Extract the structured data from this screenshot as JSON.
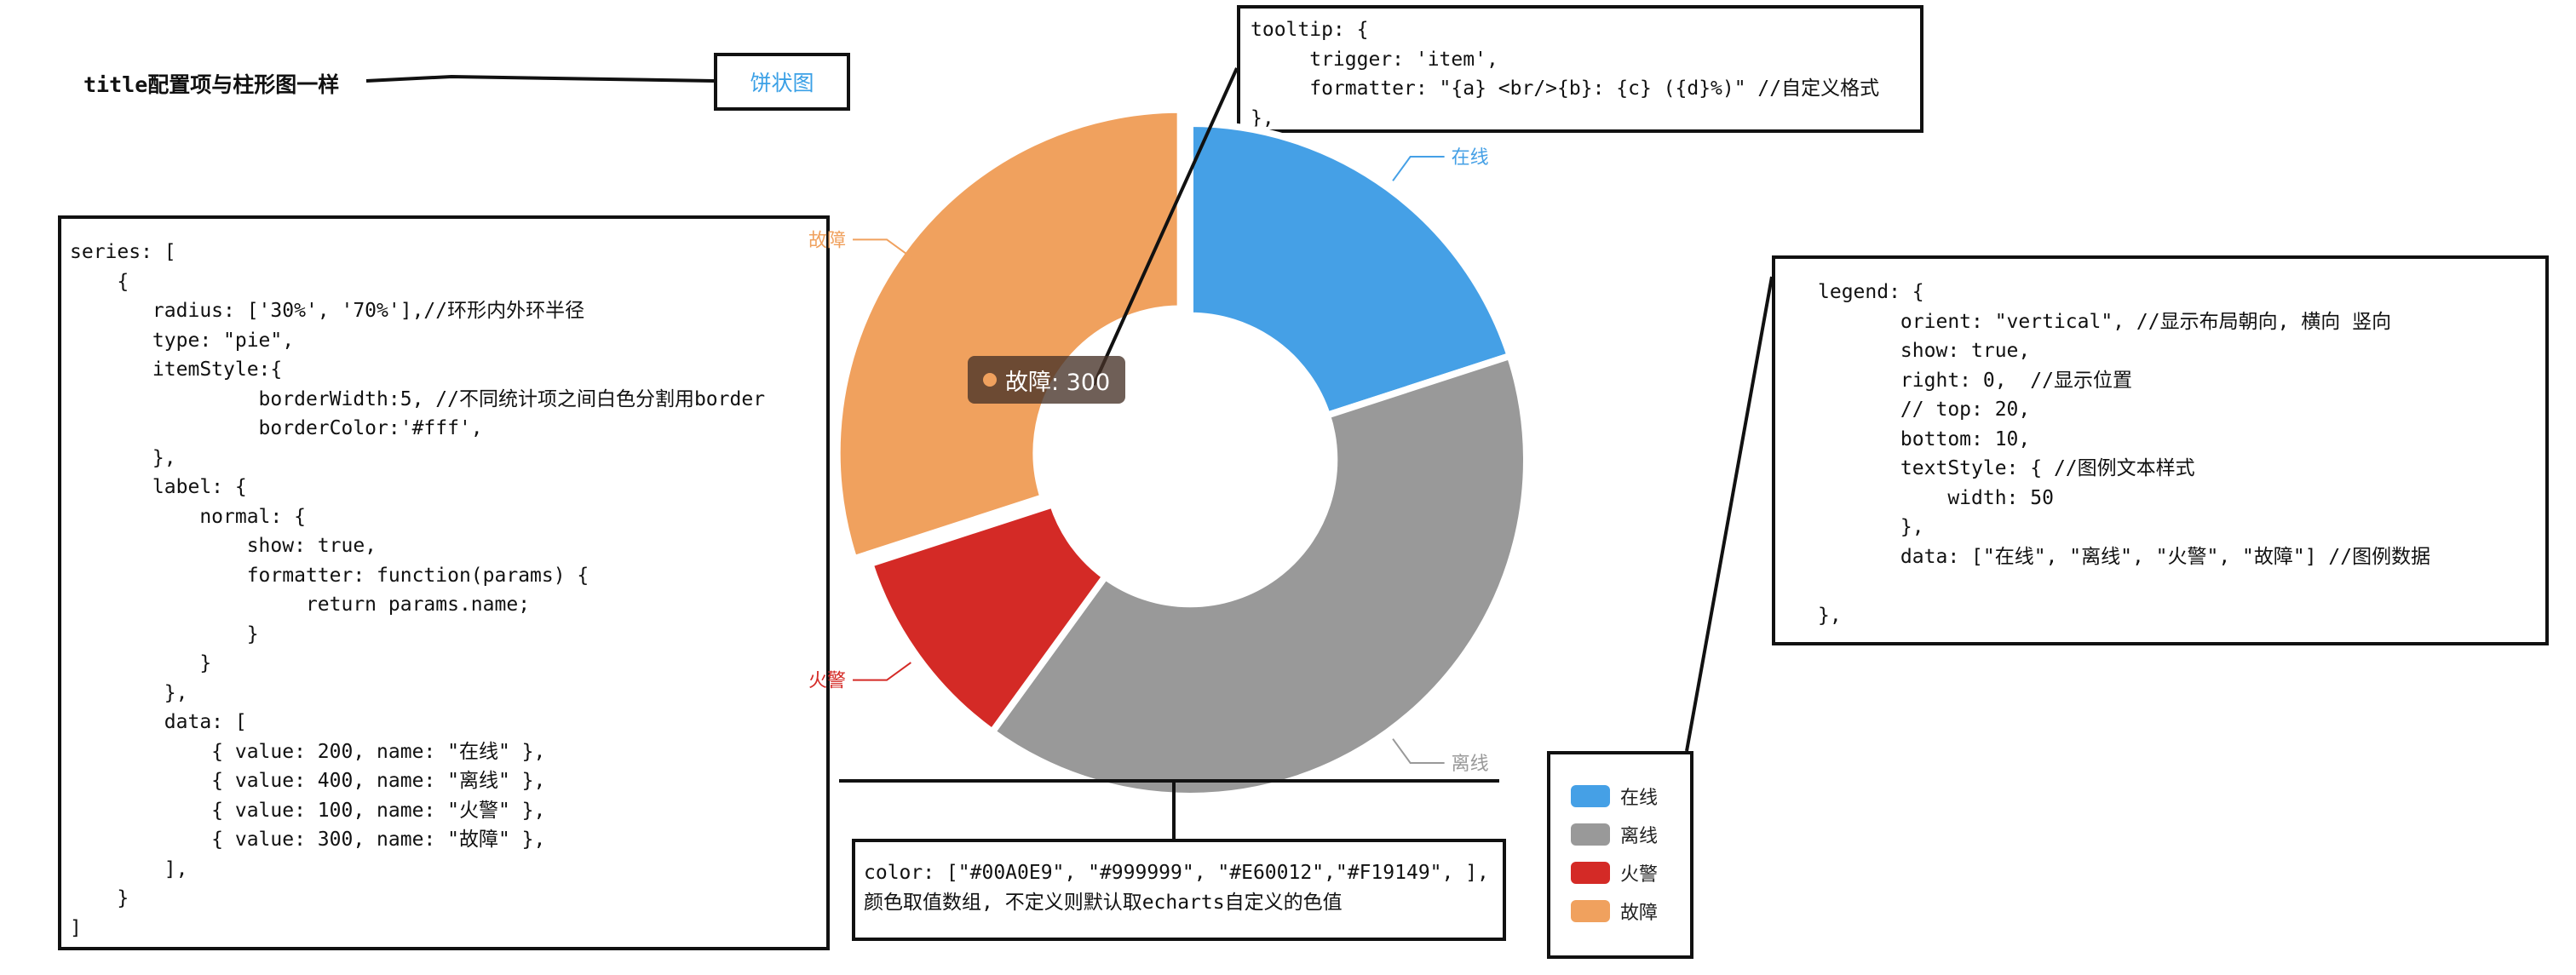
{
  "title_note": "title配置项与柱形图一样",
  "pie_title": "饼状图",
  "tooltip_code": [
    "tooltip: {",
    "     trigger: 'item',",
    "     formatter: \"{a} <br/>{b}: {c} ({d}%)\" //自定义格式",
    "},"
  ],
  "series_code": [
    "series: [",
    "    {",
    "       radius: ['30%', '70%'],//环形内外环半径",
    "       type: \"pie\",",
    "       itemStyle:{",
    "                borderWidth:5, //不同统计项之间白色分割用border",
    "                borderColor:'#fff',",
    "       },",
    "       label: {",
    "           normal: {",
    "               show: true,",
    "               formatter: function(params) {",
    "                    return params.name;",
    "               }",
    "           }",
    "        },",
    "        data: [",
    "            { value: 200, name: \"在线\" },",
    "            { value: 400, name: \"离线\" },",
    "            { value: 100, name: \"火警\" },",
    "            { value: 300, name: \"故障\" },",
    "        ],",
    "    }",
    "]"
  ],
  "legend_code": [
    "legend: {",
    "       orient: \"vertical\", //显示布局朝向, 横向 竖向",
    "       show: true,",
    "       right: 0,  //显示位置",
    "       // top: 20,",
    "       bottom: 10,",
    "       textStyle: { //图例文本样式",
    "           width: 50",
    "       },",
    "       data: [\"在线\", \"离线\", \"火警\", \"故障\"] //图例数据",
    "",
    "},"
  ],
  "color_code": [
    "color: [\"#00A0E9\", \"#999999\", \"#E60012\",\"#F19149\", ],",
    "颜色取值数组, 不定义则默认取echarts自定义的色值"
  ],
  "chart_data": {
    "type": "pie",
    "inner_radius_pct": 30,
    "outer_radius_pct": 70,
    "slices": [
      {
        "name": "在线",
        "value": 200,
        "color": "#45a0e6"
      },
      {
        "name": "离线",
        "value": 400,
        "color": "#999999"
      },
      {
        "name": "火警",
        "value": 100,
        "color": "#d42a26"
      },
      {
        "name": "故障",
        "value": 300,
        "color": "#f0a15e"
      }
    ],
    "emphasized": "故障"
  },
  "tooltip_bubble": {
    "text": "故障: 300",
    "dot_color": "#f0a15e"
  },
  "legend_items": [
    {
      "label": "在线",
      "color": "#45a0e6"
    },
    {
      "label": "离线",
      "color": "#999999"
    },
    {
      "label": "火警",
      "color": "#d42a26"
    },
    {
      "label": "故障",
      "color": "#f0a15e"
    }
  ]
}
